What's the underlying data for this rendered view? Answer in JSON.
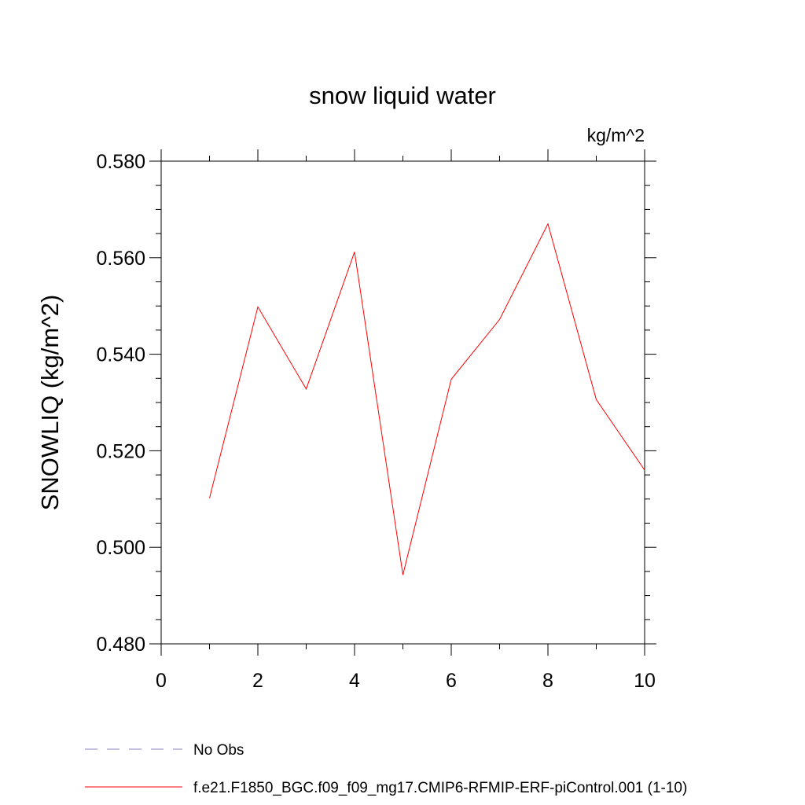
{
  "chart_data": {
    "type": "line",
    "title": "snow liquid water",
    "units_label": "kg/m^2",
    "ylabel": "SNOWLIQ  (kg/m^2)",
    "xlabel": "",
    "xlim": [
      0,
      10
    ],
    "ylim": [
      0.48,
      0.58
    ],
    "x_ticks": [
      0,
      2,
      4,
      6,
      8,
      10
    ],
    "x_tick_labels": [
      "0",
      "2",
      "4",
      "6",
      "8",
      "10"
    ],
    "y_ticks": [
      0.48,
      0.5,
      0.52,
      0.54,
      0.56,
      0.58
    ],
    "y_tick_labels": [
      "0.480",
      "0.500",
      "0.520",
      "0.540",
      "0.560",
      "0.580"
    ],
    "grid": false,
    "series": [
      {
        "name": "f.e21.F1850_BGC.f09_f09_mg17.CMIP6-RFMIP-ERF-piControl.001 (1-10)",
        "color": "#ff0000",
        "x": [
          1,
          2,
          3,
          4,
          5,
          6,
          7,
          8,
          9,
          10
        ],
        "y": [
          0.5102,
          0.5498,
          0.5328,
          0.5612,
          0.4943,
          0.5348,
          0.5472,
          0.567,
          0.5306,
          0.516
        ]
      }
    ],
    "legend": {
      "placement": "bottom-left",
      "entries": [
        {
          "label": "No Obs",
          "style": "dashed",
          "color": "#8a7fc0"
        },
        {
          "label": "f.e21.F1850_BGC.f09_f09_mg17.CMIP6-RFMIP-ERF-piControl.001 (1-10)",
          "style": "solid",
          "color": "#ff0000"
        }
      ]
    }
  }
}
